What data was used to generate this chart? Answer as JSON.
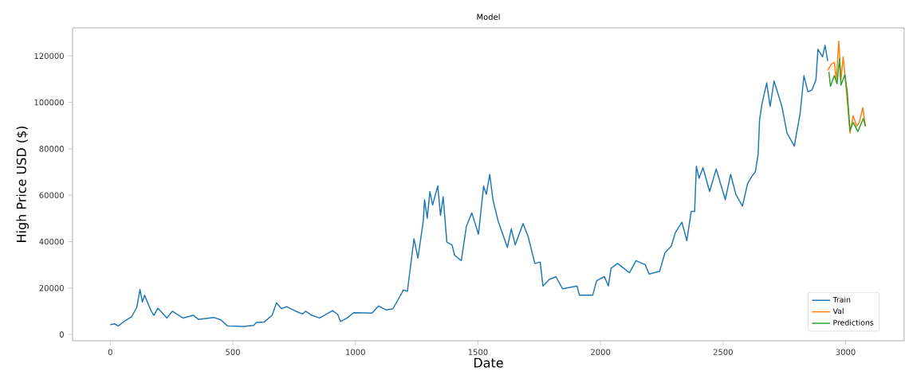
{
  "chart_data": {
    "type": "line",
    "title": "Model",
    "xlabel": "Date",
    "ylabel": "High Price USD ($)",
    "xlim": [
      -154,
      3239
    ],
    "ylim": [
      -2700,
      132100
    ],
    "xticks": [
      0,
      500,
      1000,
      1500,
      2000,
      2500,
      3000
    ],
    "yticks": [
      0,
      20000,
      40000,
      60000,
      80000,
      100000,
      120000
    ],
    "legend": "bottom right",
    "grid": false,
    "marker": "none",
    "line_style": "solid",
    "series": [
      {
        "name": "Train",
        "color": "#1f77b4",
        "x": [
          0,
          17,
          33,
          60,
          87,
          108,
          121,
          131,
          140,
          167,
          178,
          194,
          231,
          253,
          296,
          339,
          360,
          424,
          451,
          478,
          542,
          585,
          596,
          628,
          660,
          678,
          698,
          719,
          757,
          784,
          797,
          822,
          854,
          907,
          928,
          939,
          966,
          993,
          1068,
          1094,
          1126,
          1153,
          1196,
          1212,
          1239,
          1255,
          1277,
          1282,
          1293,
          1304,
          1315,
          1336,
          1347,
          1358,
          1373,
          1394,
          1405,
          1432,
          1453,
          1475,
          1502,
          1523,
          1534,
          1548,
          1561,
          1582,
          1620,
          1636,
          1652,
          1684,
          1705,
          1732,
          1754,
          1765,
          1791,
          1818,
          1845,
          1904,
          1914,
          1968,
          1984,
          2016,
          2032,
          2043,
          2070,
          2118,
          2145,
          2183,
          2198,
          2241,
          2263,
          2289,
          2305,
          2332,
          2352,
          2370,
          2384,
          2391,
          2402,
          2418,
          2445,
          2472,
          2509,
          2531,
          2552,
          2579,
          2600,
          2616,
          2632,
          2643,
          2649,
          2659,
          2678,
          2692,
          2708,
          2740,
          2761,
          2791,
          2798,
          2814,
          2830,
          2846,
          2862,
          2879,
          2887,
          2906,
          2916,
          2927
        ],
        "values": [
          4230,
          4580,
          3680,
          5950,
          7670,
          11700,
          19400,
          14000,
          16900,
          10000,
          8250,
          11350,
          7100,
          10000,
          7100,
          8250,
          6500,
          7300,
          6300,
          3680,
          3440,
          3900,
          5160,
          5390,
          8250,
          13650,
          11100,
          12000,
          10000,
          8840,
          10000,
          8250,
          7100,
          10300,
          8600,
          5600,
          7100,
          9400,
          9180,
          12280,
          10560,
          11100,
          19150,
          18600,
          41200,
          32900,
          48950,
          58100,
          50100,
          61600,
          55800,
          64000,
          51300,
          59300,
          39800,
          38600,
          34100,
          31800,
          46700,
          52400,
          43200,
          63900,
          60400,
          69000,
          58100,
          48950,
          37500,
          45500,
          38600,
          47800,
          42070,
          30600,
          31200,
          20880,
          23700,
          24900,
          19700,
          20880,
          16900,
          16900,
          23150,
          24900,
          20900,
          28550,
          30600,
          26600,
          31800,
          30000,
          26000,
          27200,
          35200,
          38100,
          43800,
          48400,
          40400,
          53000,
          53000,
          72500,
          67300,
          71900,
          61600,
          71300,
          58100,
          69000,
          60400,
          55300,
          65000,
          67900,
          70200,
          77600,
          92500,
          99400,
          108400,
          98300,
          109200,
          98300,
          86800,
          81100,
          85700,
          94800,
          111500,
          104600,
          105200,
          109700,
          122900,
          119600,
          124600,
          117800
        ]
      },
      {
        "name": "Val",
        "color": "#ff7f0e",
        "x": [
          2927,
          2943,
          2954,
          2962,
          2972,
          2981,
          2990,
          3002,
          3018,
          3031,
          3045,
          3056,
          3070,
          3081
        ],
        "values": [
          113800,
          116600,
          117200,
          109700,
          126400,
          109700,
          119600,
          106300,
          86800,
          94300,
          89700,
          91400,
          97700,
          89700
        ]
      },
      {
        "name": "Predictions",
        "color": "#2ca02c",
        "x": [
          2932,
          2938,
          2954,
          2965,
          2975,
          2981,
          2997,
          3007,
          3018,
          3031,
          3050,
          3072,
          3081
        ],
        "values": [
          113200,
          106900,
          111500,
          108000,
          118900,
          107400,
          112000,
          104000,
          87900,
          91400,
          87400,
          93100,
          89700
        ]
      }
    ]
  }
}
